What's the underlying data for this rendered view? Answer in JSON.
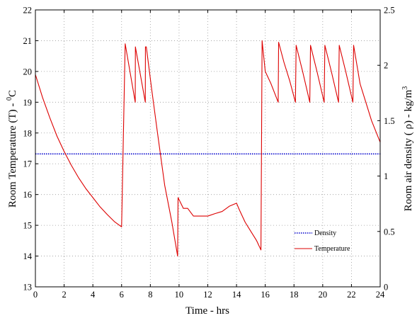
{
  "chart_data": {
    "type": "line",
    "xlabel": "Time - hrs",
    "ylabel_left": "Room Temperature (T) - ",
    "ylabel_left_sup": "0",
    "ylabel_left_unit": "C",
    "ylabel_right": "Room air density ( ρ) - kg/m",
    "ylabel_right_sup": "3",
    "xlim": [
      0,
      24
    ],
    "ylim_left": [
      13,
      22
    ],
    "ylim_right": [
      0,
      2.5
    ],
    "x_ticks": [
      "0",
      "2",
      "4",
      "6",
      "8",
      "10",
      "12",
      "14",
      "16",
      "18",
      "20",
      "22",
      "24"
    ],
    "y_left_ticks": [
      "13",
      "14",
      "15",
      "16",
      "17",
      "18",
      "19",
      "20",
      "21",
      "22"
    ],
    "y_right_ticks": [
      "0",
      "0.5",
      "1",
      "1.5",
      "2",
      "2.5"
    ],
    "grid": true,
    "legend_position": "lower-right",
    "series": [
      {
        "name": "Density",
        "axis": "right",
        "style": "dotted",
        "color": "#0000cc",
        "x": [
          0,
          24
        ],
        "y": [
          1.2,
          1.2
        ]
      },
      {
        "name": "Temperature",
        "axis": "left",
        "style": "solid",
        "color": "#dd0000",
        "x": [
          0,
          0.5,
          1,
          1.5,
          2,
          2.5,
          3,
          3.5,
          4,
          4.5,
          5,
          5.5,
          6,
          6.25,
          6.95,
          6.96,
          7.65,
          7.66,
          7.72,
          8.1,
          8.5,
          9,
          9.5,
          9.9,
          9.93,
          10.3,
          10.6,
          11,
          11.5,
          12,
          12.5,
          13,
          13.5,
          14,
          14.2,
          14.6,
          15,
          15.4,
          15.7,
          15.78,
          16,
          16.4,
          16.9,
          16.93,
          17.3,
          17.7,
          18.1,
          18.15,
          18.6,
          19.1,
          19.15,
          19.6,
          20.1,
          20.15,
          20.6,
          21.1,
          21.15,
          21.6,
          22.1,
          22.15,
          22.6,
          23,
          23.4,
          24
        ],
        "y": [
          19.9,
          19.15,
          18.5,
          17.9,
          17.4,
          16.95,
          16.55,
          16.2,
          15.9,
          15.6,
          15.35,
          15.12,
          14.95,
          20.9,
          19.0,
          20.8,
          19.0,
          20.8,
          20.8,
          19.4,
          18.0,
          16.3,
          15.1,
          14.0,
          15.9,
          15.55,
          15.55,
          15.3,
          15.3,
          15.3,
          15.38,
          15.45,
          15.62,
          15.72,
          15.5,
          15.1,
          14.8,
          14.5,
          14.2,
          21.0,
          20.0,
          19.6,
          19.0,
          20.95,
          20.3,
          19.7,
          19.0,
          20.85,
          20.0,
          19.0,
          20.85,
          20.0,
          19.0,
          20.85,
          20.0,
          19.0,
          20.85,
          20.0,
          19.0,
          20.85,
          19.6,
          19.0,
          18.4,
          17.7
        ]
      }
    ]
  }
}
